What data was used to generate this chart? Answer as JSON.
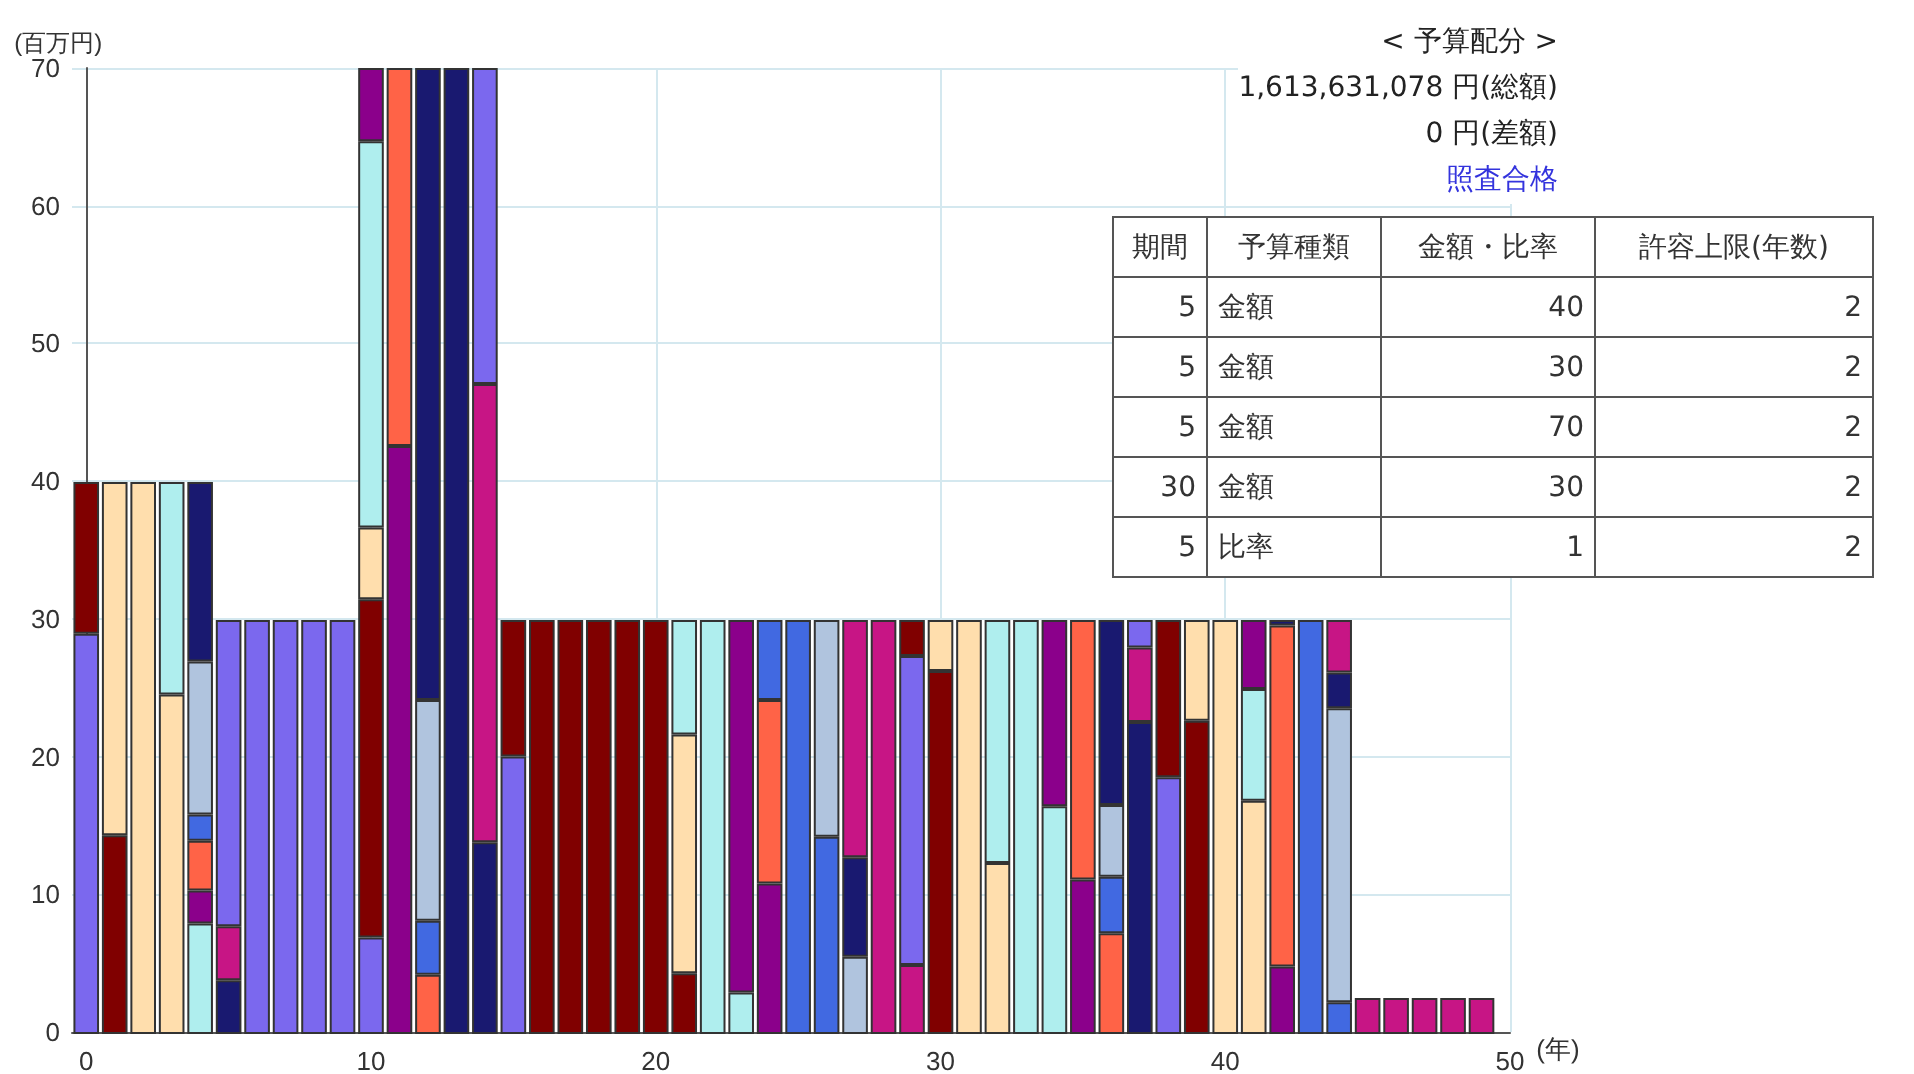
{
  "chart_data": {
    "type": "bar",
    "stacked": true,
    "xlabel": "(年)",
    "ylabel": "(百万円)",
    "x": [
      0,
      1,
      2,
      3,
      4,
      5,
      6,
      7,
      8,
      9,
      10,
      11,
      12,
      13,
      14,
      15,
      16,
      17,
      18,
      19,
      20,
      21,
      22,
      23,
      24,
      25,
      26,
      27,
      28,
      29,
      30,
      31,
      32,
      33,
      34,
      35,
      36,
      37,
      38,
      39,
      40,
      41,
      42,
      43,
      44,
      45,
      46,
      47,
      48,
      49
    ],
    "xlim": [
      -0.5,
      50
    ],
    "xticks": [
      0,
      10,
      20,
      30,
      40,
      50
    ],
    "ylim": [
      0,
      70
    ],
    "yticks": [
      0,
      10,
      20,
      30,
      40,
      50,
      60,
      70
    ],
    "grid": true,
    "series": [
      {
        "values": [
          29,
          14.4,
          40,
          24.6,
          8,
          3.9,
          30,
          30,
          30,
          30,
          7,
          42.6,
          4.3,
          70,
          13.9,
          20.1,
          30,
          30,
          30,
          30,
          30,
          4.4,
          30,
          3,
          10.9,
          30,
          14.3,
          5.6,
          30,
          5,
          26.3,
          30,
          12.4,
          30,
          16.5,
          11.2,
          7.3,
          22.6,
          18.6,
          22.7,
          30,
          16.9,
          4.9,
          30,
          2.3,
          2.6,
          2.6,
          2.6,
          2.6,
          2.6
        ],
        "colors": [
          "#7b68ee",
          "#800000",
          "#ffdead",
          "#ffdead",
          "#afeeee",
          "#191970",
          "#7b68ee",
          "#7b68ee",
          "#7b68ee",
          "#7b68ee",
          "#7b68ee",
          "#8b008b",
          "#ff6347",
          "#191970",
          "#191970",
          "#7b68ee",
          "#800000",
          "#800000",
          "#800000",
          "#800000",
          "#800000",
          "#800000",
          "#afeeee",
          "#afeeee",
          "#8b008b",
          "#4169e1",
          "#4169e1",
          "#b0c4de",
          "#c71585",
          "#c71585",
          "#800000",
          "#ffdead",
          "#ffdead",
          "#afeeee",
          "#afeeee",
          "#8b008b",
          "#ff6347",
          "#191970",
          "#7b68ee",
          "#800000",
          "#ffdead",
          "#ffdead",
          "#8b008b",
          "#4169e1",
          "#4169e1",
          "#c71585",
          "#c71585",
          "#c71585",
          "#c71585",
          "#c71585"
        ]
      },
      {
        "values": [
          11,
          25.6,
          null,
          15.4,
          2.4,
          3.9,
          null,
          null,
          null,
          null,
          24.5,
          27.4,
          3.9,
          null,
          33.2,
          9.9,
          null,
          null,
          null,
          null,
          null,
          17.3,
          null,
          27,
          13.3,
          null,
          15.7,
          7.2,
          null,
          22.4,
          3.7,
          null,
          17.6,
          null,
          13.5,
          18.8,
          4.1,
          5.4,
          11.4,
          7.3,
          null,
          8.1,
          24.7,
          null,
          21.3,
          null,
          null,
          null,
          null,
          null
        ],
        "colors": [
          "#800000",
          "#ffdead",
          null,
          "#afeeee",
          "#8b008b",
          "#c71585",
          null,
          null,
          null,
          null,
          "#800000",
          "#ff6347",
          "#4169e1",
          null,
          "#c71585",
          "#800000",
          null,
          null,
          null,
          null,
          null,
          "#ffdead",
          null,
          "#8b008b",
          "#ff6347",
          null,
          "#b0c4de",
          "#191970",
          null,
          "#7b68ee",
          "#ffdead",
          null,
          "#afeeee",
          null,
          "#8b008b",
          "#ff6347",
          "#4169e1",
          "#c71585",
          "#800000",
          "#ffdead",
          null,
          "#afeeee",
          "#ff6347",
          null,
          "#b0c4de",
          null,
          null,
          null,
          null,
          null
        ]
      },
      {
        "values": [
          null,
          null,
          null,
          null,
          3.6,
          22.2,
          null,
          null,
          null,
          null,
          5.2,
          null,
          16,
          null,
          22.9,
          null,
          null,
          null,
          null,
          null,
          null,
          8.3,
          null,
          null,
          5.8,
          null,
          null,
          17.2,
          null,
          2.6,
          null,
          null,
          null,
          null,
          null,
          null,
          5.2,
          2,
          null,
          null,
          null,
          5,
          0.4,
          null,
          2.6,
          null,
          null,
          null,
          null,
          null
        ],
        "colors": [
          null,
          null,
          null,
          null,
          "#ff6347",
          "#7b68ee",
          null,
          null,
          null,
          null,
          "#ffdead",
          null,
          "#b0c4de",
          null,
          "#7b68ee",
          null,
          null,
          null,
          null,
          null,
          null,
          "#afeeee",
          null,
          null,
          "#4169e1",
          null,
          null,
          "#c71585",
          null,
          "#800000",
          null,
          null,
          null,
          null,
          null,
          null,
          "#b0c4de",
          "#7b68ee",
          null,
          null,
          null,
          "#8b008b",
          "#191970",
          null,
          "#191970",
          null,
          null,
          null,
          null,
          null
        ]
      },
      {
        "values": [
          null,
          null,
          null,
          null,
          1.9,
          null,
          null,
          null,
          null,
          null,
          28,
          null,
          45.8,
          null,
          null,
          null,
          null,
          null,
          null,
          null,
          null,
          null,
          null,
          null,
          null,
          null,
          null,
          null,
          null,
          null,
          null,
          null,
          null,
          null,
          null,
          null,
          13.4,
          null,
          null,
          null,
          null,
          null,
          null,
          null,
          3.8,
          null,
          null,
          null,
          null,
          null
        ],
        "colors": [
          null,
          null,
          null,
          null,
          "#4169e1",
          null,
          null,
          null,
          null,
          null,
          "#afeeee",
          null,
          "#191970",
          null,
          null,
          null,
          null,
          null,
          null,
          null,
          null,
          null,
          null,
          null,
          null,
          null,
          null,
          null,
          null,
          null,
          null,
          null,
          null,
          null,
          null,
          null,
          "#191970",
          null,
          null,
          null,
          null,
          null,
          null,
          null,
          "#c71585",
          null,
          null,
          null,
          null,
          null
        ]
      },
      {
        "values": [
          null,
          null,
          null,
          null,
          11.1,
          null,
          null,
          null,
          null,
          null,
          5.3,
          null,
          null,
          null,
          null,
          null,
          null,
          null,
          null,
          null,
          null,
          null,
          null,
          null,
          null,
          null,
          null,
          null,
          null,
          null,
          null,
          null,
          null,
          null,
          null,
          null,
          null,
          null,
          null,
          null,
          null,
          null,
          null,
          null,
          null,
          null,
          null,
          null,
          null,
          null
        ],
        "colors": [
          null,
          null,
          null,
          null,
          "#b0c4de",
          null,
          null,
          null,
          null,
          null,
          "#8b008b",
          null,
          null,
          null,
          null,
          null,
          null,
          null,
          null,
          null,
          null,
          null,
          null,
          null,
          null,
          null,
          null,
          null,
          null,
          null,
          null,
          null,
          null,
          null,
          null,
          null,
          null,
          null,
          null,
          null,
          null,
          null,
          null,
          null,
          null,
          null,
          null,
          null,
          null,
          null
        ]
      },
      {
        "values": [
          null,
          null,
          null,
          null,
          13,
          null,
          null,
          null,
          null,
          null,
          null,
          null,
          null,
          null,
          null,
          null,
          null,
          null,
          null,
          null,
          null,
          null,
          null,
          null,
          null,
          null,
          null,
          null,
          null,
          null,
          null,
          null,
          null,
          null,
          null,
          null,
          null,
          null,
          null,
          null,
          null,
          null,
          null,
          null,
          null,
          null,
          null,
          null,
          null,
          null
        ],
        "colors": [
          null,
          null,
          null,
          null,
          "#191970",
          null,
          null,
          null,
          null,
          null,
          null,
          null,
          null,
          null,
          null,
          null,
          null,
          null,
          null,
          null,
          null,
          null,
          null,
          null,
          null,
          null,
          null,
          null,
          null,
          null,
          null,
          null,
          null,
          null,
          null,
          null,
          null,
          null,
          null,
          null,
          null,
          null,
          null,
          null,
          null,
          null,
          null,
          null,
          null,
          null
        ]
      }
    ],
    "annotations": [
      "< 予算配分 >",
      "1,613,631,078 円(総額)",
      "0 円(差額)",
      "照査合格",
      "期間",
      "予算種類",
      "金額・比率",
      "許容上限(年数)",
      "5",
      "金額",
      "40",
      "2",
      "5",
      "金額",
      "30",
      "2",
      "5",
      "金額",
      "70",
      "2",
      "30",
      "金額",
      "30",
      "2",
      "5",
      "比率",
      "1",
      "2"
    ]
  }
}
